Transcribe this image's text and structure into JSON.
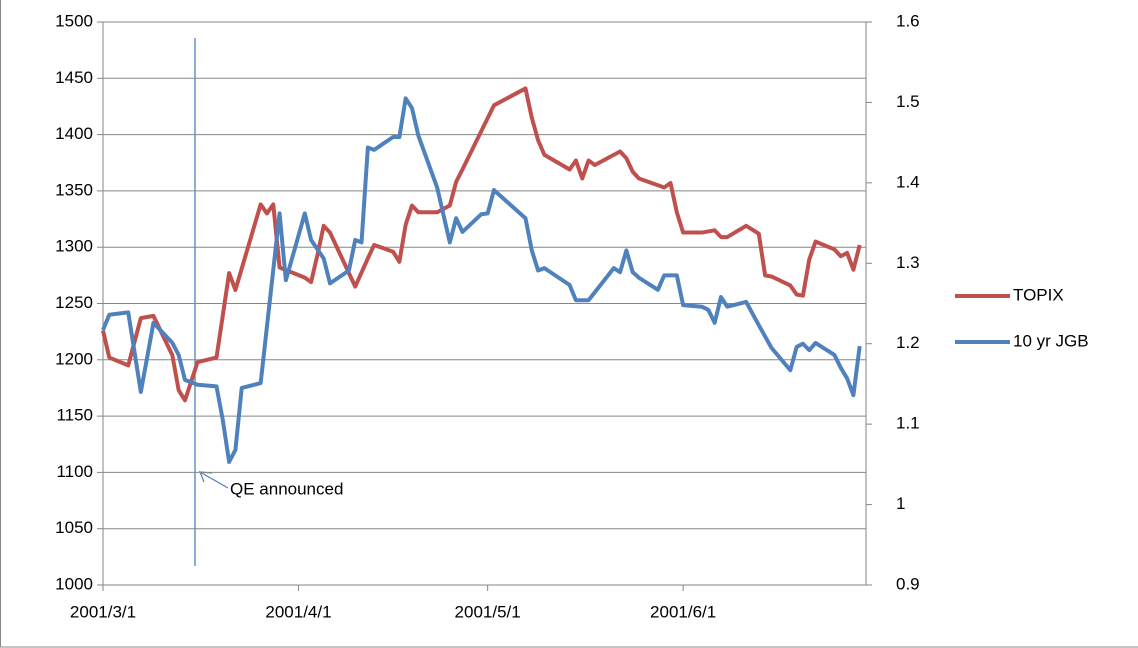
{
  "chart_data": {
    "type": "line",
    "xlim": [
      "2001/3/1",
      "2001/6/30"
    ],
    "xticks": [
      "2001/3/1",
      "2001/4/1",
      "2001/5/1",
      "2001/6/1"
    ],
    "ylim": [
      1000,
      1500
    ],
    "yticks": [
      1000,
      1050,
      1100,
      1150,
      1200,
      1250,
      1300,
      1350,
      1400,
      1450,
      1500
    ],
    "y2lim": [
      0.9,
      1.6
    ],
    "y2ticks": [
      0.9,
      1,
      1.1,
      1.2,
      1.3,
      1.4,
      1.5,
      1.6
    ],
    "grid": true,
    "legend": "right",
    "annotation": "QE announced",
    "series": [
      {
        "name": "TOPIX",
        "color": "#c0504d",
        "x": [
          "2001/3/1",
          "2001/3/2",
          "2001/3/5",
          "2001/3/7",
          "2001/3/9",
          "2001/3/12",
          "2001/3/13",
          "2001/3/14",
          "2001/3/16",
          "2001/3/19",
          "2001/3/21",
          "2001/3/22",
          "2001/3/26",
          "2001/3/27",
          "2001/3/28",
          "2001/3/29",
          "2001/4/2",
          "2001/4/3",
          "2001/4/4",
          "2001/4/5",
          "2001/4/6",
          "2001/4/10",
          "2001/4/12",
          "2001/4/13",
          "2001/4/16",
          "2001/4/17",
          "2001/4/18",
          "2001/4/19",
          "2001/4/20",
          "2001/4/23",
          "2001/4/25",
          "2001/4/26",
          "2001/4/27",
          "2001/5/2",
          "2001/5/7",
          "2001/5/8",
          "2001/5/9",
          "2001/5/10",
          "2001/5/14",
          "2001/5/15",
          "2001/5/16",
          "2001/5/17",
          "2001/5/18",
          "2001/5/22",
          "2001/5/23",
          "2001/5/24",
          "2001/5/25",
          "2001/5/29",
          "2001/5/30",
          "2001/5/31",
          "2001/6/1",
          "2001/6/4",
          "2001/6/6",
          "2001/6/7",
          "2001/6/8",
          "2001/6/11",
          "2001/6/13",
          "2001/6/14",
          "2001/6/15",
          "2001/6/18",
          "2001/6/19",
          "2001/6/20",
          "2001/6/21",
          "2001/6/22",
          "2001/6/25",
          "2001/6/26",
          "2001/6/27",
          "2001/6/28",
          "2001/6/29"
        ],
        "values": [
          1226,
          1202,
          1195,
          1237,
          1239,
          1204,
          1173,
          1164,
          1198,
          1202,
          1277,
          1262,
          1338,
          1330,
          1338,
          1282,
          1273,
          1269,
          1293,
          1319,
          1313,
          1265,
          1290,
          1302,
          1296,
          1287,
          1320,
          1337,
          1331,
          1331,
          1337,
          1358,
          1369,
          1426,
          1441,
          1415,
          1395,
          1382,
          1369,
          1377,
          1361,
          1377,
          1373,
          1385,
          1379,
          1367,
          1361,
          1353,
          1357,
          1331,
          1313,
          1313,
          1315,
          1309,
          1309,
          1319,
          1312,
          1275,
          1274,
          1266,
          1258,
          1257,
          1289,
          1305,
          1298,
          1292,
          1295,
          1280,
          1302
        ]
      },
      {
        "name": "10 yr JGB",
        "color": "#4f81bd",
        "axis": "y2",
        "x": [
          "2001/3/1",
          "2001/3/2",
          "2001/3/5",
          "2001/3/7",
          "2001/3/9",
          "2001/3/12",
          "2001/3/13",
          "2001/3/14",
          "2001/3/16",
          "2001/3/19",
          "2001/3/20",
          "2001/3/21",
          "2001/3/22",
          "2001/3/23",
          "2001/3/26",
          "2001/3/29",
          "2001/3/30",
          "2001/4/2",
          "2001/4/3",
          "2001/4/5",
          "2001/4/6",
          "2001/4/9",
          "2001/4/10",
          "2001/4/11",
          "2001/4/12",
          "2001/4/13",
          "2001/4/16",
          "2001/4/17",
          "2001/4/18",
          "2001/4/19",
          "2001/4/20",
          "2001/4/23",
          "2001/4/25",
          "2001/4/26",
          "2001/4/27",
          "2001/4/30",
          "2001/5/1",
          "2001/5/2",
          "2001/5/7",
          "2001/5/8",
          "2001/5/9",
          "2001/5/10",
          "2001/5/14",
          "2001/5/15",
          "2001/5/17",
          "2001/5/21",
          "2001/5/22",
          "2001/5/23",
          "2001/5/24",
          "2001/5/25",
          "2001/5/28",
          "2001/5/29",
          "2001/5/31",
          "2001/6/1",
          "2001/6/4",
          "2001/6/5",
          "2001/6/6",
          "2001/6/7",
          "2001/6/8",
          "2001/6/11",
          "2001/6/13",
          "2001/6/15",
          "2001/6/18",
          "2001/6/19",
          "2001/6/20",
          "2001/6/21",
          "2001/6/22",
          "2001/6/25",
          "2001/6/26",
          "2001/6/27",
          "2001/6/28",
          "2001/6/29"
        ],
        "values": [
          1.217,
          1.236,
          1.239,
          1.14,
          1.226,
          1.201,
          1.186,
          1.155,
          1.149,
          1.147,
          1.105,
          1.053,
          1.068,
          1.145,
          1.151,
          1.362,
          1.279,
          1.362,
          1.329,
          1.306,
          1.275,
          1.291,
          1.329,
          1.326,
          1.444,
          1.441,
          1.457,
          1.457,
          1.505,
          1.493,
          1.459,
          1.394,
          1.326,
          1.356,
          1.339,
          1.361,
          1.362,
          1.391,
          1.356,
          1.316,
          1.291,
          1.294,
          1.273,
          1.254,
          1.254,
          1.294,
          1.289,
          1.316,
          1.289,
          1.282,
          1.267,
          1.285,
          1.285,
          1.248,
          1.246,
          1.242,
          1.226,
          1.258,
          1.246,
          1.252,
          1.223,
          1.195,
          1.167,
          1.196,
          1.2,
          1.192,
          1.201,
          1.186,
          1.17,
          1.157,
          1.136,
          1.197
        ]
      }
    ]
  }
}
